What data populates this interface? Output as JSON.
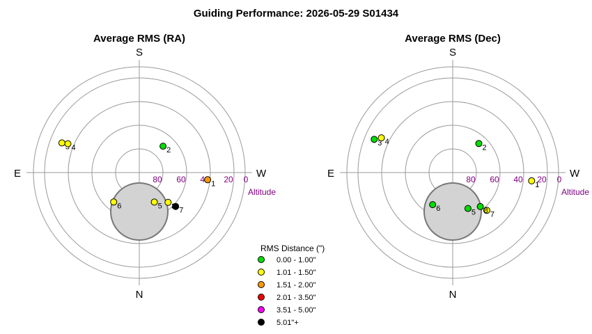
{
  "title": "Guiding Performance: 2026-05-29 S01434",
  "cardinals": {
    "S": "S",
    "N": "N",
    "E": "E",
    "W": "W"
  },
  "altitude_label": "Altitude",
  "legend": {
    "title": "RMS Distance (\")",
    "items": [
      {
        "label": "0.00 - 1.00\"",
        "color": "#00dd00"
      },
      {
        "label": "1.01 - 1.50\"",
        "color": "#ffff00"
      },
      {
        "label": "1.51 - 2.00\"",
        "color": "#ff9900"
      },
      {
        "label": "2.01 - 3.50\"",
        "color": "#ee0000"
      },
      {
        "label": "3.51 - 5.00\"",
        "color": "#ff00ff"
      },
      {
        "label": "5.01\"+",
        "color": "#000000"
      }
    ]
  },
  "chart_data": [
    {
      "type": "scatter",
      "projection": "polar-altaz",
      "title": "Average RMS (RA)",
      "r_axis": {
        "label": "Altitude",
        "ticks": [
          80,
          60,
          40,
          20,
          0
        ],
        "range": [
          90,
          0
        ]
      },
      "grid": true,
      "points": [
        {
          "id": "1",
          "azimuth": 264,
          "altitude": 42,
          "rms_bin": "1.51 - 2.00\"",
          "color": "#ff9900"
        },
        {
          "id": "2",
          "azimuth": 318,
          "altitude": 70,
          "rms_bin": "0.00 - 1.00\"",
          "color": "#00dd00"
        },
        {
          "id": "3",
          "azimuth": 69,
          "altitude": 30,
          "rms_bin": "1.01 - 1.50\"",
          "color": "#ffff00"
        },
        {
          "id": "4",
          "azimuth": 68,
          "altitude": 35,
          "rms_bin": "1.01 - 1.50\"",
          "color": "#ffff00"
        },
        {
          "id": "5",
          "azimuth": 207,
          "altitude": 72,
          "rms_bin": "1.01 - 1.50\"",
          "color": "#ffff00"
        },
        {
          "id": "6",
          "azimuth": 139,
          "altitude": 67,
          "rms_bin": "1.01 - 1.50\"",
          "color": "#ffff00"
        },
        {
          "id": "7",
          "azimuth": 227,
          "altitude": 58,
          "rms_bin": "5.01\"+",
          "color": "#000000"
        },
        {
          "id": "8",
          "azimuth": 224,
          "altitude": 65,
          "rms_bin": "1.01 - 1.50\"",
          "color": "#ffff00"
        }
      ]
    },
    {
      "type": "scatter",
      "projection": "polar-altaz",
      "title": "Average RMS (Dec)",
      "r_axis": {
        "label": "Altitude",
        "ticks": [
          80,
          60,
          40,
          20,
          0
        ],
        "range": [
          90,
          0
        ]
      },
      "grid": true,
      "points": [
        {
          "id": "1",
          "azimuth": 264,
          "altitude": 33,
          "rms_bin": "1.01 - 1.50\"",
          "color": "#ffff00"
        },
        {
          "id": "2",
          "azimuth": 318,
          "altitude": 67,
          "rms_bin": "0.00 - 1.00\"",
          "color": "#00dd00"
        },
        {
          "id": "3",
          "azimuth": 67,
          "altitude": 28,
          "rms_bin": "0.00 - 1.00\"",
          "color": "#00dd00"
        },
        {
          "id": "4",
          "azimuth": 64,
          "altitude": 33,
          "rms_bin": "1.01 - 1.50\"",
          "color": "#ffff00"
        },
        {
          "id": "5",
          "azimuth": 203,
          "altitude": 67,
          "rms_bin": "0.00 - 1.00\"",
          "color": "#00dd00"
        },
        {
          "id": "6",
          "azimuth": 148,
          "altitude": 68,
          "rms_bin": "0.00 - 1.00\"",
          "color": "#00dd00"
        },
        {
          "id": "7",
          "azimuth": 222,
          "altitude": 57,
          "rms_bin": "1.01 - 1.50\"",
          "color": "#ffff00"
        },
        {
          "id": "8",
          "azimuth": 219,
          "altitude": 63,
          "rms_bin": "0.00 - 1.00\"",
          "color": "#00dd00"
        }
      ]
    }
  ]
}
